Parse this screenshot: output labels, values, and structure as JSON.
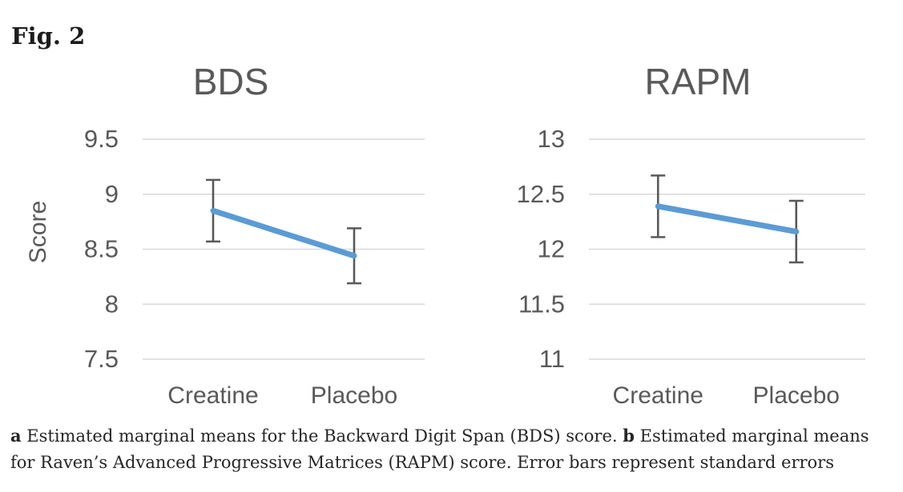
{
  "figure": {
    "label": "Fig. 2"
  },
  "caption": {
    "parts": [
      {
        "text": "a",
        "bold": true
      },
      {
        "text": " Estimated marginal means for the Backward Digit Span (BDS) score. ",
        "bold": false
      },
      {
        "text": "b",
        "bold": true
      },
      {
        "text": " Estimated marginal means for Raven’s Advanced Progressive Matrices (RAPM) score. Error bars represent standard errors",
        "bold": false
      }
    ]
  },
  "colors": {
    "line": "#5B9BD5",
    "error_bar": "#595959",
    "axis_text": "#595959",
    "title_text": "#595959",
    "gridline": "#D9D9D9",
    "caption_text": "#262626"
  },
  "chart_data": [
    {
      "type": "line",
      "title": "BDS",
      "ylabel": "Score",
      "xlabel": "",
      "categories": [
        "Creatine",
        "Placebo"
      ],
      "series": [
        {
          "name": "Estimated marginal mean",
          "values": [
            8.85,
            8.44
          ]
        }
      ],
      "error_bars": [
        {
          "low": 8.57,
          "high": 9.13
        },
        {
          "low": 8.19,
          "high": 8.69
        }
      ],
      "yticks": [
        9.5,
        9,
        8.5,
        8,
        7.5
      ],
      "ylim": [
        7.5,
        9.5
      ],
      "grid": true,
      "legend": false
    },
    {
      "type": "line",
      "title": "RAPM",
      "ylabel": "",
      "xlabel": "",
      "categories": [
        "Creatine",
        "Placebo"
      ],
      "series": [
        {
          "name": "Estimated marginal mean",
          "values": [
            12.39,
            12.16
          ]
        }
      ],
      "error_bars": [
        {
          "low": 12.11,
          "high": 12.67
        },
        {
          "low": 11.88,
          "high": 12.44
        }
      ],
      "yticks": [
        13,
        12.5,
        12,
        11.5,
        11
      ],
      "ylim": [
        11,
        13
      ],
      "grid": true,
      "legend": false
    }
  ]
}
